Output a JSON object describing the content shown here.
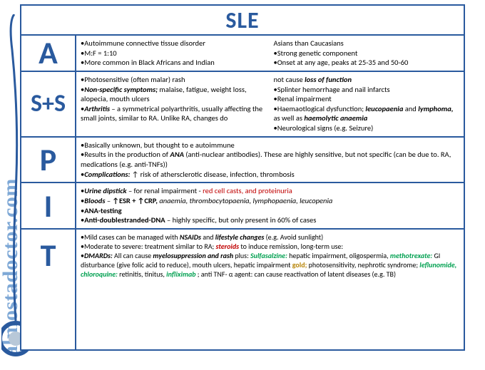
{
  "title": "SLE",
  "watermark": "almostadoctor.com",
  "colors": {
    "frame": "#2a5a9e",
    "letter": "#2a5a9e",
    "red": "#c00000",
    "green": "#00a050",
    "gold": "#b8860b",
    "watermark": "#7ea8d6"
  },
  "rows": [
    {
      "letter": "A",
      "col1": [
        "•Autoimmune connective tissue disorder",
        "•M:F = 1:10",
        "•More common in Black Africans and Indian"
      ],
      "col2": [
        "Asians than Caucasians",
        "•Strong genetic component",
        "•Onset at any age, peaks at 25-35 and 50-60"
      ]
    },
    {
      "letter": "S+S",
      "col1_html": "•Photosensitive (often malar) rash<br>•<span class='bi'>Non-specific symptoms;</span> malaise, fatigue, weight loss, alopecia, mouth ulcers<br>•<span class='bi'>Arthritis</span> – a symmetrical polyarthritis, usually affecting the small joints, similar to RA. Unlike RA, changes do",
      "col2_html": "not cause <span class='bi'>loss of function</span><br>•Splinter hemorrhage and nail infarcts<br>•Renal impairment<br>•Haemaotlogical dysfunction; <span class='bi'>leucopaenia</span> and <span class='bi'>lymphoma,</span> as well as <span class='bi'>haemolytic anaemia</span><br>•Neurological signs (e.g. Seizure)"
    },
    {
      "letter": "P",
      "html": "•Basically unknown, but thought to e autoimmune<br>•Results in the production of <span class='bi'>ANA</span> (anti-nuclear antibodies). These are highly sensitive, but not specific (can be due to. RA, medications (e.g. anti-TNFs))<br>•<span class='bi'>Complications:</span> ↑ risk of athersclerotic disease, infection, thrombosis"
    },
    {
      "letter": "I",
      "html": "•<span class='bi'>Urine dipstick</span> – for renal impairment - <span class='red'>red cell casts, and proteinuria</span><br>•<span class='bi'>Bloods</span> – <span class='b'>↑ESR + ↑CRP,</span> <span class='i'>anaemia, thrombocytopaenia, lymphopaenia, leucopenia</span><br>•<span class='b'>ANA-testing</span><br>•<span class='b'>Anti-doublestranded-DNA</span> – highly specific, but only present in 60% of cases"
    },
    {
      "letter": "T",
      "html": "•Mild cases can be managed with <span class='bi'>NSAIDs</span> and <span class='bi'>lifestyle changes</span> (e.g. Avoid sunlight)<br>•Moderate to severe: treatment similar to RA; <span class='bi red'>steroids</span> to induce remission, long-term use:<br>•<span class='bi'>DMARDs:</span> All can cause <span class='bi'>myelosuppression  and rash</span> plus: <span class='green'>Sulfasalzine:</span> hepatic impairment, oligospermia, <span class='green'>methotrexate:</span> GI disturbance (give folic acid to reduce), mouth ulcers, hepatic impairment <span class='gold'>gold;</span> photosensitivity, nephrotic syndrome; <span class='green'>leflunomide, chloroquine:</span> retinitis, tinitus, <span class='green'>infliximab</span> ; anti TNF- α agent: can cause reactivation of latent diseases (e.g. TB)"
    }
  ]
}
